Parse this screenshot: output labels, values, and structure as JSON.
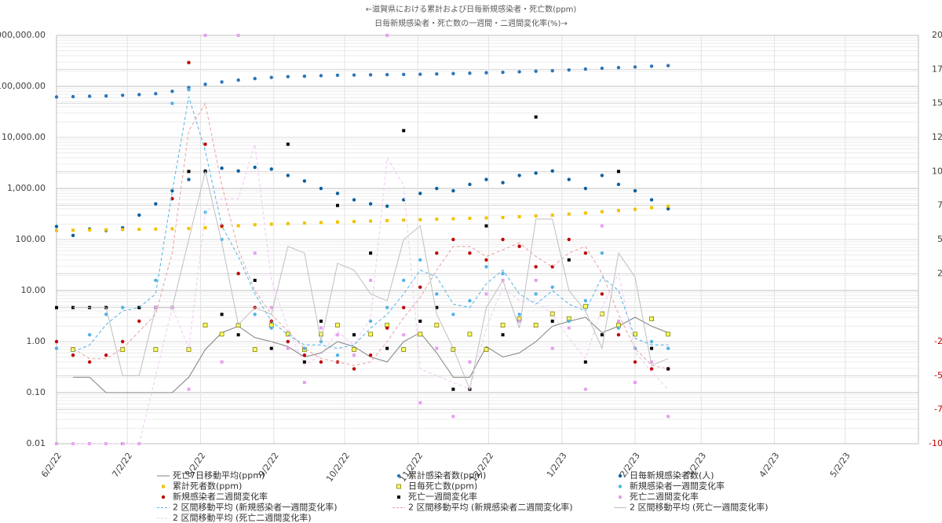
{
  "chart_data": {
    "type": "combo",
    "title": "←滋賀県における累計および日毎新規感染者・死亡数(ppm)",
    "subtitle": "日毎新規感染者・死亡数の一週間・二週間変化率(%)→",
    "x": [
      "2022-06-02",
      "2022-06-09",
      "2022-06-16",
      "2022-06-23",
      "2022-06-30",
      "2022-07-07",
      "2022-07-14",
      "2022-07-21",
      "2022-07-28",
      "2022-08-04",
      "2022-08-11",
      "2022-08-18",
      "2022-08-25",
      "2022-09-01",
      "2022-09-08",
      "2022-09-15",
      "2022-09-22",
      "2022-09-29",
      "2022-10-06",
      "2022-10-13",
      "2022-10-20",
      "2022-10-27",
      "2022-11-03",
      "2022-11-10",
      "2022-11-17",
      "2022-11-24",
      "2022-12-01",
      "2022-12-08",
      "2022-12-15",
      "2022-12-22",
      "2022-12-29",
      "2023-01-05",
      "2023-01-12",
      "2023-01-19",
      "2023-01-26",
      "2023-02-02",
      "2023-02-09",
      "2023-02-16"
    ],
    "xlim": [
      "2022-06-02",
      "2023-06-02"
    ],
    "xticks": [
      {
        "value": "2022-06-02",
        "label": "6/2/22"
      },
      {
        "value": "2022-07-02",
        "label": "7/2/22"
      },
      {
        "value": "2022-08-02",
        "label": "8/2/22"
      },
      {
        "value": "2022-09-02",
        "label": "9/2/22"
      },
      {
        "value": "2022-10-02",
        "label": "10/2/22"
      },
      {
        "value": "2022-11-02",
        "label": "11/2/22"
      },
      {
        "value": "2022-12-02",
        "label": "12/2/22"
      },
      {
        "value": "2023-01-02",
        "label": "1/2/23"
      },
      {
        "value": "2023-02-02",
        "label": "2/2/23"
      },
      {
        "value": "2023-03-02",
        "label": "3/2/23"
      },
      {
        "value": "2023-04-02",
        "label": "4/2/23"
      },
      {
        "value": "2023-05-02",
        "label": "5/2/23"
      }
    ],
    "ylim": [
      0.01,
      1000000
    ],
    "log_scale": true,
    "yticks": [
      {
        "value": 1000000,
        "label": "1,000,000.00"
      },
      {
        "value": 100000,
        "label": "100,000.00"
      },
      {
        "value": 10000,
        "label": "10,000.00"
      },
      {
        "value": 1000,
        "label": "1,000.00"
      },
      {
        "value": 100,
        "label": "100.00"
      },
      {
        "value": 10,
        "label": "10.00"
      },
      {
        "value": 1,
        "label": "1.00"
      },
      {
        "value": 0.1,
        "label": "0.10"
      },
      {
        "value": 0.01,
        "label": "0.01"
      }
    ],
    "y2lim": [
      -100,
      200
    ],
    "y2ticks": [
      200,
      175,
      150,
      125,
      100,
      75,
      50,
      25,
      0,
      -25,
      -50,
      -75,
      -100
    ],
    "y2_negative_color": "#c00000",
    "grid": true,
    "legend": "bottom",
    "series": [
      {
        "name": "死亡7日移動平均(ppm)",
        "color": "#808080",
        "marker": "none",
        "line": "solid",
        "values": [
          null,
          0.2,
          0.2,
          0.1,
          0.1,
          0.1,
          0.1,
          0.1,
          0.2,
          0.7,
          1.5,
          2.0,
          1.2,
          1.0,
          0.8,
          0.5,
          0.6,
          1.0,
          0.8,
          0.5,
          0.4,
          1.0,
          1.5,
          0.6,
          0.2,
          0.2,
          0.8,
          0.5,
          0.6,
          1.0,
          2.0,
          2.5,
          3.0,
          1.5,
          2.0,
          3.0,
          2.0,
          1.5
        ]
      },
      {
        "name": "累計感染者数(ppm)",
        "color": "#2e75b6",
        "marker": "circle",
        "line": "none",
        "values": [
          62000,
          63000,
          64000,
          65000,
          67000,
          69000,
          72000,
          80000,
          95000,
          110000,
          122000,
          133000,
          142000,
          150000,
          155000,
          158000,
          162000,
          165000,
          167000,
          168000,
          170000,
          171000,
          173000,
          175000,
          178000,
          181000,
          185000,
          189000,
          193000,
          198000,
          203000,
          210000,
          218000,
          226000,
          233000,
          240000,
          248000,
          255000
        ]
      },
      {
        "name": "日毎新規感染者数(人)",
        "color": "#0b5f9e",
        "marker": "circle",
        "line": "none",
        "values": [
          180,
          120,
          160,
          150,
          170,
          300,
          500,
          900,
          1500,
          2200,
          2500,
          2200,
          2600,
          2400,
          1800,
          1400,
          1000,
          800,
          600,
          500,
          450,
          600,
          800,
          1000,
          900,
          1200,
          1500,
          1300,
          1800,
          2000,
          2200,
          1500,
          1000,
          1800,
          1200,
          900,
          600,
          400
        ]
      },
      {
        "name": "累計死者数(ppm)",
        "color": "#f2c200",
        "marker": "square",
        "line": "none",
        "values": [
          150,
          152,
          154,
          155,
          157,
          158,
          160,
          162,
          165,
          170,
          178,
          186,
          195,
          200,
          205,
          210,
          215,
          220,
          225,
          230,
          235,
          240,
          245,
          250,
          255,
          260,
          265,
          270,
          280,
          290,
          300,
          315,
          330,
          350,
          370,
          390,
          420,
          450
        ]
      },
      {
        "name": "日毎死亡数(ppm)",
        "color": "#ffff66",
        "marker": "square-hollow",
        "line": "none",
        "values": [
          null,
          0.7,
          null,
          null,
          0.7,
          null,
          0.7,
          null,
          0.7,
          2.1,
          1.4,
          2.1,
          0.7,
          2.1,
          1.4,
          0.7,
          1.4,
          2.1,
          0.7,
          1.4,
          2.1,
          0.7,
          1.4,
          2.1,
          0.7,
          1.4,
          0.7,
          2.1,
          2.8,
          2.1,
          3.5,
          2.8,
          4.9,
          3.5,
          2.1,
          1.4,
          2.8,
          1.4
        ]
      },
      {
        "name": "新規感染者一週間変化率",
        "color": "#4fb3e8",
        "marker": "circle",
        "line": "none",
        "axis": "y2",
        "values": [
          -30,
          -35,
          -20,
          -5,
          0,
          0,
          20,
          150,
          160,
          70,
          50,
          25,
          -5,
          -15,
          -25,
          -30,
          -25,
          -35,
          -20,
          -10,
          0,
          20,
          35,
          10,
          -5,
          5,
          30,
          25,
          -5,
          10,
          15,
          -10,
          5,
          40,
          -15,
          -30,
          -25,
          -30
        ]
      },
      {
        "name": "新規感染者二週間変化率",
        "color": "#c00000",
        "marker": "circle",
        "line": "none",
        "axis": "y2",
        "values": [
          -25,
          -35,
          -40,
          -35,
          -25,
          -10,
          0,
          80,
          180,
          120,
          60,
          25,
          0,
          -10,
          -25,
          -35,
          -40,
          -40,
          -45,
          -35,
          -15,
          0,
          15,
          40,
          50,
          40,
          35,
          50,
          45,
          30,
          30,
          50,
          40,
          10,
          -20,
          -40,
          -45,
          -45
        ]
      },
      {
        "name": "死亡一週間変化率",
        "color": "#000000",
        "marker": "square",
        "line": "none",
        "axis": "y2",
        "values": [
          0,
          0,
          0,
          0,
          -100,
          0,
          0,
          0,
          100,
          100,
          -5,
          -20,
          20,
          -30,
          120,
          -40,
          -10,
          75,
          -20,
          40,
          -30,
          130,
          -10,
          0,
          -60,
          -60,
          60,
          -20,
          -10,
          140,
          -10,
          35,
          -40,
          -20,
          100,
          -55,
          -30,
          -45
        ]
      },
      {
        "name": "死亡二週間変化率",
        "color": "#e6a0f0",
        "marker": "square",
        "line": "none",
        "axis": "y2",
        "values": [
          -100,
          -100,
          -100,
          -100,
          -100,
          -100,
          0,
          0,
          -60,
          200,
          -40,
          200,
          40,
          0,
          -30,
          -55,
          -15,
          -20,
          -35,
          20,
          200,
          -20,
          -70,
          -30,
          -80,
          -40,
          10,
          20,
          -10,
          20,
          -30,
          -15,
          -60,
          60,
          -10,
          -55,
          -40,
          -80
        ]
      },
      {
        "name": "2 区間移動平均 (新規感染者一週間変化率)",
        "color": "#4fb3e8",
        "marker": "none",
        "line": "dashed",
        "axis": "y2",
        "values": [
          null,
          -32.5,
          -27.5,
          -12.5,
          -2.5,
          0,
          10,
          85,
          155,
          115,
          60,
          37.5,
          10,
          -10,
          -20,
          -27.5,
          -27.5,
          -30,
          -27.5,
          -15,
          -5,
          10,
          27.5,
          22.5,
          2.5,
          0,
          17.5,
          27.5,
          10,
          2.5,
          12.5,
          2.5,
          -2.5,
          22.5,
          12.5,
          -22.5,
          -27.5,
          -27.5
        ]
      },
      {
        "name": "2 区間移動平均 (新規感染者二週間変化率)",
        "color": "#e8a0a0",
        "marker": "none",
        "line": "dashed",
        "axis": "y2",
        "values": [
          null,
          -30,
          -37.5,
          -37.5,
          -30,
          -17.5,
          -5,
          40,
          130,
          150,
          90,
          42.5,
          12.5,
          -5,
          -17.5,
          -30,
          -37.5,
          -40,
          -42.5,
          -40,
          -25,
          -7.5,
          7.5,
          27.5,
          45,
          45,
          37.5,
          42.5,
          47.5,
          37.5,
          30,
          40,
          45,
          25,
          -5,
          -30,
          -42.5,
          -45
        ]
      },
      {
        "name": "2 区間移動平均 (死亡一週間変化率)",
        "color": "#bfbfbf",
        "marker": "none",
        "line": "solid",
        "axis": "y2",
        "values": [
          null,
          0,
          0,
          0,
          -50,
          -50,
          0,
          0,
          50,
          100,
          47.5,
          -12.5,
          0,
          -5,
          45,
          40,
          -25,
          32.5,
          27.5,
          10,
          5,
          50,
          60,
          -5,
          -30,
          -60,
          0,
          20,
          -15,
          65,
          65,
          12.5,
          -2.5,
          -30,
          40,
          22.5,
          -42.5,
          -37.5
        ]
      },
      {
        "name": "2 区間移動平均 (死亡二週間変化率)",
        "color": "#f0c8f5",
        "marker": "none",
        "line": "dashed",
        "axis": "y2",
        "values": [
          null,
          -100,
          -100,
          -100,
          -100,
          -100,
          -50,
          0,
          -30,
          70,
          80,
          80,
          120,
          20,
          -15,
          -42.5,
          -35,
          -17.5,
          -27.5,
          -7.5,
          110,
          90,
          -45,
          -50,
          -55,
          -60,
          -15,
          15,
          5,
          5,
          -5,
          -22.5,
          -37.5,
          0,
          25,
          -32.5,
          -47.5,
          -60
        ]
      }
    ]
  }
}
